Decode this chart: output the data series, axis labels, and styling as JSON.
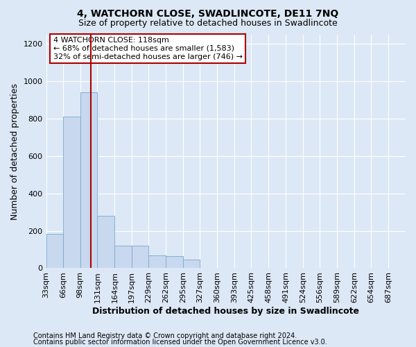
{
  "title": "4, WATCHORN CLOSE, SWADLINCOTE, DE11 7NQ",
  "subtitle": "Size of property relative to detached houses in Swadlincote",
  "xlabel": "Distribution of detached houses by size in Swadlincote",
  "ylabel": "Number of detached properties",
  "footnote1": "Contains HM Land Registry data © Crown copyright and database right 2024.",
  "footnote2": "Contains public sector information licensed under the Open Government Licence v3.0.",
  "bins": [
    33,
    66,
    98,
    131,
    164,
    197,
    229,
    262,
    295,
    327,
    360,
    393,
    425,
    458,
    491,
    524,
    556,
    589,
    622,
    654,
    687
  ],
  "bar_heights": [
    185,
    810,
    940,
    280,
    120,
    120,
    70,
    65,
    45,
    0,
    0,
    0,
    0,
    0,
    0,
    0,
    0,
    0,
    0,
    0
  ],
  "bar_color": "#c8d8ee",
  "bar_edge_color": "#7aa8d0",
  "property_size": 118,
  "vline_color": "#aa0000",
  "annotation_text": "4 WATCHORN CLOSE: 118sqm\n← 68% of detached houses are smaller (1,583)\n32% of semi-detached houses are larger (746) →",
  "annotation_box_color": "#ffffff",
  "annotation_box_edge": "#aa0000",
  "ylim": [
    0,
    1250
  ],
  "yticks": [
    0,
    200,
    400,
    600,
    800,
    1000,
    1200
  ],
  "bg_color": "#dce8f5",
  "plot_bg_color": "#dce8f5",
  "grid_color": "#ffffff",
  "title_fontsize": 10,
  "subtitle_fontsize": 9,
  "label_fontsize": 9,
  "tick_fontsize": 8,
  "annotation_fontsize": 8,
  "footnote_fontsize": 7
}
